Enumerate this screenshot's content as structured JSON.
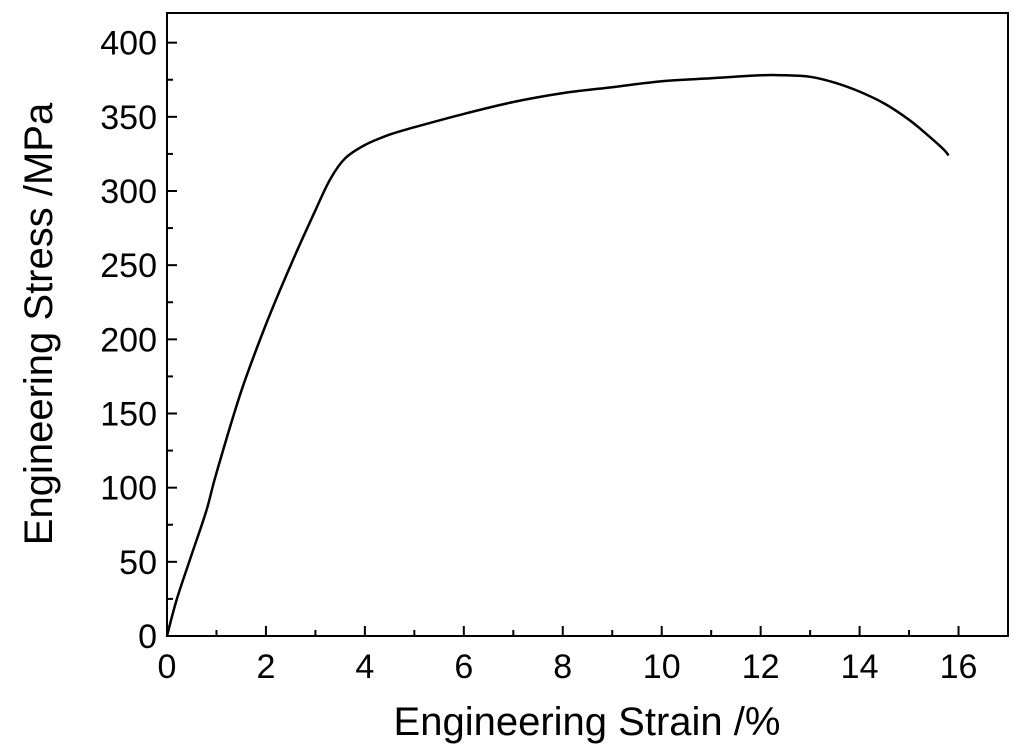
{
  "chart_data": {
    "type": "line",
    "title": "",
    "xlabel": "Engineering Strain /%",
    "ylabel": "Engineering Stress  /MPa",
    "xlim": [
      0,
      17
    ],
    "ylim": [
      0,
      420
    ],
    "x_ticks": [
      0,
      2,
      4,
      6,
      8,
      10,
      12,
      14,
      16
    ],
    "y_ticks": [
      0,
      50,
      100,
      150,
      200,
      250,
      300,
      350,
      400
    ],
    "x_tick_labels": [
      "0",
      "2",
      "4",
      "6",
      "8",
      "10",
      "12",
      "14",
      "16"
    ],
    "y_tick_labels": [
      "0",
      "50",
      "100",
      "150",
      "200",
      "250",
      "300",
      "350",
      "400"
    ],
    "x_minor_step": 1,
    "y_minor_step": 25,
    "grid": false,
    "legend": "none",
    "series": [
      {
        "color": "#000000",
        "x": [
          0.0,
          0.2,
          0.5,
          0.8,
          1.0,
          1.5,
          2.0,
          2.5,
          3.0,
          3.3,
          3.6,
          4.0,
          4.5,
          5.0,
          6.0,
          7.0,
          8.0,
          9.0,
          10.0,
          11.0,
          12.0,
          12.5,
          13.0,
          13.5,
          14.0,
          14.5,
          15.0,
          15.4,
          15.7,
          15.8
        ],
        "y": [
          0,
          25,
          55,
          85,
          110,
          165,
          210,
          250,
          287,
          308,
          322,
          331,
          338,
          343,
          352,
          360,
          366,
          370,
          374,
          376,
          378,
          378,
          377,
          373,
          367,
          359,
          348,
          337,
          328,
          324
        ]
      }
    ]
  }
}
